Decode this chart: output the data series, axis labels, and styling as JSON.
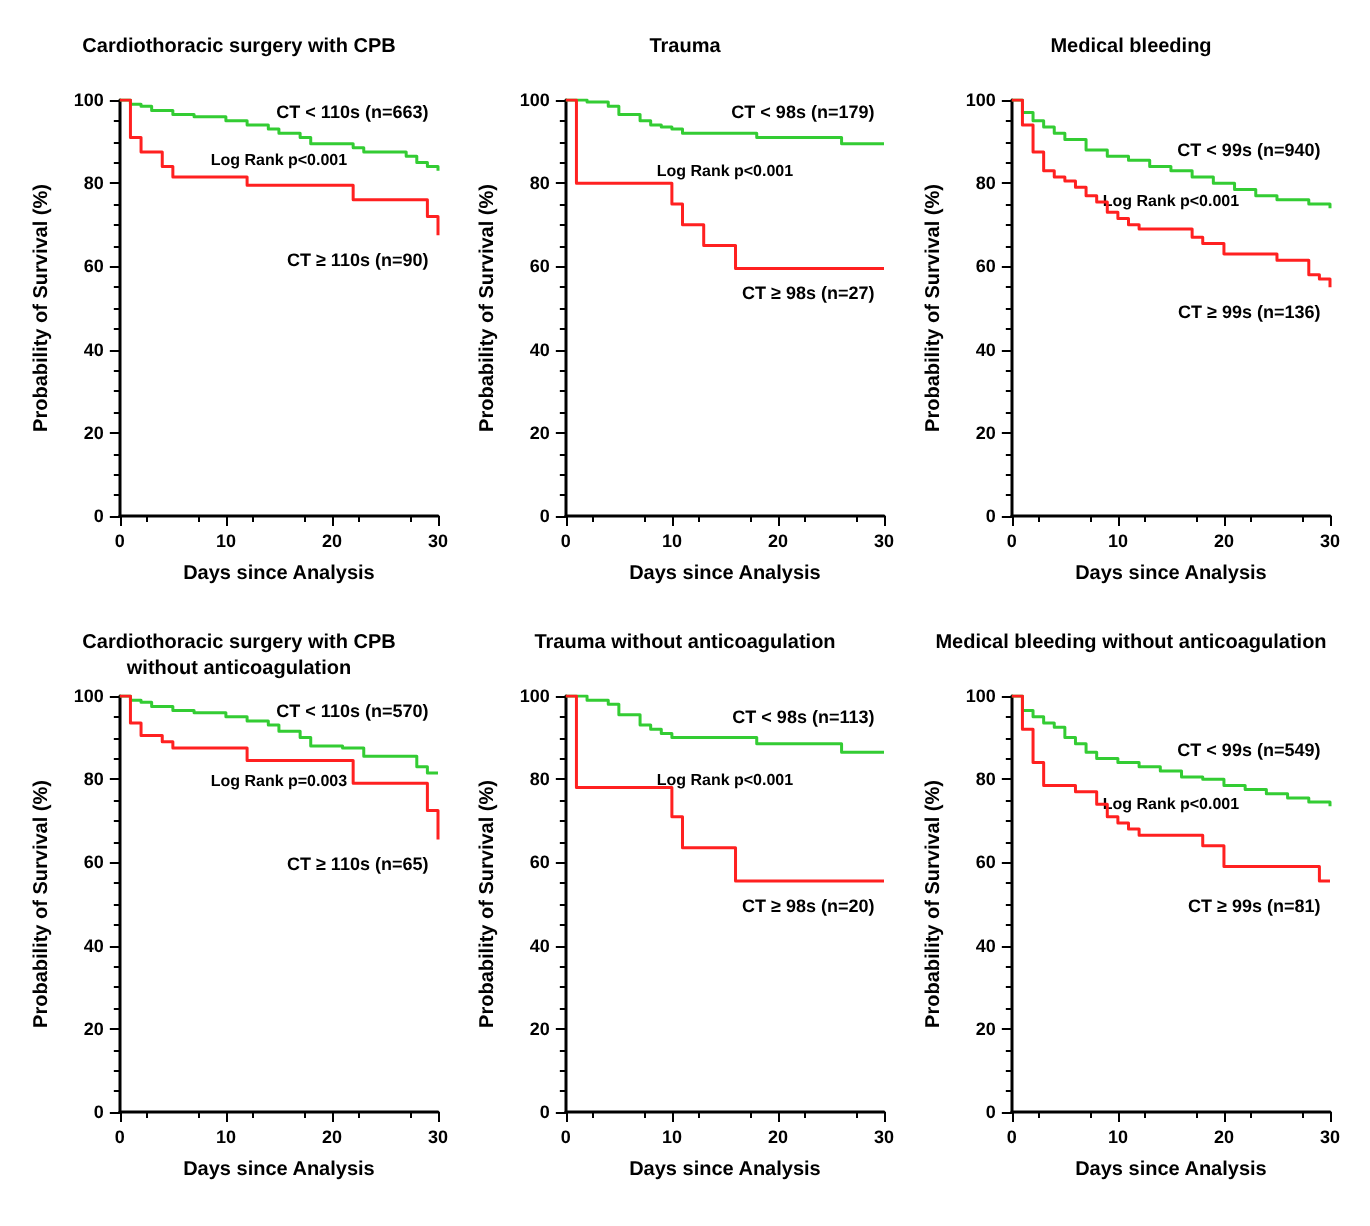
{
  "chart_data": [
    {
      "type": "step",
      "title": "Cardiothoracic surgery with CPB",
      "xlabel": "Days since Analysis",
      "ylabel": "Probability of Survival (%)",
      "xlim": [
        0,
        30
      ],
      "xticks": [
        0,
        10,
        20,
        30
      ],
      "ylim": [
        0,
        100
      ],
      "yticks": [
        0,
        20,
        40,
        60,
        80,
        100
      ],
      "grid": false,
      "legend": false,
      "marker": "none",
      "annotations": [
        "Log Rank p<0.001"
      ],
      "series": [
        {
          "name": "CT < 110s (n=663)",
          "color": "#33cc33",
          "x": [
            0,
            1,
            2,
            3,
            5,
            7,
            10,
            12,
            14,
            15,
            17,
            18,
            22,
            23,
            27,
            28,
            29,
            30
          ],
          "values": [
            100,
            99,
            98.5,
            97.5,
            96.5,
            96,
            95,
            94,
            93,
            92,
            91,
            89.5,
            88.5,
            87.5,
            86.5,
            85,
            84,
            83
          ]
        },
        {
          "name": "CT ≥ 110s (n=90)",
          "color": "#ff2020",
          "x": [
            0,
            1,
            2,
            4,
            5,
            12,
            22,
            29,
            30
          ],
          "values": [
            100,
            91,
            87.5,
            84,
            81.5,
            79.5,
            76,
            72,
            67.5
          ]
        }
      ]
    },
    {
      "type": "step",
      "title": "Trauma",
      "xlabel": "Days since Analysis",
      "ylabel": "Probability of Survival (%)",
      "xlim": [
        0,
        30
      ],
      "xticks": [
        0,
        10,
        20,
        30
      ],
      "ylim": [
        0,
        100
      ],
      "yticks": [
        0,
        20,
        40,
        60,
        80,
        100
      ],
      "grid": false,
      "legend": false,
      "marker": "none",
      "annotations": [
        "Log Rank p<0.001"
      ],
      "series": [
        {
          "name": "CT < 98s (n=179)",
          "color": "#33cc33",
          "x": [
            0,
            2,
            4,
            5,
            7,
            8,
            9,
            10,
            11,
            18,
            26,
            30
          ],
          "values": [
            100,
            99.5,
            98.5,
            96.5,
            95,
            94,
            93.5,
            93,
            92,
            91,
            89.5,
            89.5
          ]
        },
        {
          "name": "CT ≥ 98s (n=27)",
          "color": "#ff2020",
          "x": [
            0,
            1,
            10,
            11,
            13,
            16,
            30
          ],
          "values": [
            100,
            80,
            75,
            70,
            65,
            59.5,
            59.5
          ]
        }
      ]
    },
    {
      "type": "step",
      "title": "Medical bleeding",
      "xlabel": "Days since Analysis",
      "ylabel": "Probability of Survival (%)",
      "xlim": [
        0,
        30
      ],
      "xticks": [
        0,
        10,
        20,
        30
      ],
      "ylim": [
        0,
        100
      ],
      "yticks": [
        0,
        20,
        40,
        60,
        80,
        100
      ],
      "grid": false,
      "legend": false,
      "marker": "none",
      "annotations": [
        "Log Rank p<0.001"
      ],
      "series": [
        {
          "name": "CT < 99s (n=940)",
          "color": "#33cc33",
          "x": [
            0,
            1,
            2,
            3,
            4,
            5,
            7,
            9,
            11,
            13,
            15,
            17,
            19,
            21,
            23,
            25,
            28,
            30
          ],
          "values": [
            100,
            97,
            95,
            93.5,
            92,
            90.5,
            88,
            86.5,
            85.5,
            84,
            83,
            81.5,
            80,
            78.5,
            77,
            76,
            75,
            74
          ]
        },
        {
          "name": "CT ≥ 99s (n=136)",
          "color": "#ff2020",
          "x": [
            0,
            1,
            2,
            3,
            4,
            5,
            6,
            7,
            8,
            9,
            10,
            11,
            12,
            17,
            18,
            20,
            25,
            28,
            29,
            30
          ],
          "values": [
            100,
            94,
            87.5,
            83,
            81.5,
            80.5,
            79,
            77,
            75.5,
            73,
            71.5,
            70,
            69,
            67,
            65.5,
            63,
            61.5,
            58,
            57,
            55
          ]
        }
      ]
    },
    {
      "type": "step",
      "title": "Cardiothoracic surgery with CPB\nwithout anticoagulation",
      "xlabel": "Days since Analysis",
      "ylabel": "Probability of Survival (%)",
      "xlim": [
        0,
        30
      ],
      "xticks": [
        0,
        10,
        20,
        30
      ],
      "ylim": [
        0,
        100
      ],
      "yticks": [
        0,
        20,
        40,
        60,
        80,
        100
      ],
      "grid": false,
      "legend": false,
      "marker": "none",
      "annotations": [
        "Log Rank p=0.003"
      ],
      "series": [
        {
          "name": "CT < 110s (n=570)",
          "color": "#33cc33",
          "x": [
            0,
            1,
            2,
            3,
            5,
            7,
            10,
            12,
            14,
            15,
            17,
            18,
            21,
            23,
            28,
            29,
            30
          ],
          "values": [
            100,
            99,
            98.5,
            97.5,
            96.5,
            96,
            95,
            94,
            93,
            91.5,
            90,
            88,
            87.5,
            85.5,
            83,
            81.5,
            81.5
          ]
        },
        {
          "name": "CT ≥ 110s (n=65)",
          "color": "#ff2020",
          "x": [
            0,
            1,
            2,
            4,
            5,
            12,
            22,
            29,
            30
          ],
          "values": [
            100,
            93.5,
            90.5,
            89,
            87.5,
            84.5,
            79,
            72.5,
            65.5
          ]
        }
      ]
    },
    {
      "type": "step",
      "title": "Trauma without anticoagulation",
      "xlabel": "Days since Analysis",
      "ylabel": "Probability of Survival (%)",
      "xlim": [
        0,
        30
      ],
      "xticks": [
        0,
        10,
        20,
        30
      ],
      "ylim": [
        0,
        100
      ],
      "yticks": [
        0,
        20,
        40,
        60,
        80,
        100
      ],
      "grid": false,
      "legend": false,
      "marker": "none",
      "annotations": [
        "Log Rank p<0.001"
      ],
      "series": [
        {
          "name": "CT < 98s (n=113)",
          "color": "#33cc33",
          "x": [
            0,
            2,
            4,
            5,
            7,
            8,
            9,
            10,
            18,
            26,
            30
          ],
          "values": [
            100,
            99,
            98,
            95.5,
            93,
            92,
            91,
            90,
            88.5,
            86.5,
            86.5
          ]
        },
        {
          "name": "CT ≥ 98s (n=20)",
          "color": "#ff2020",
          "x": [
            0,
            1,
            10,
            11,
            16,
            30
          ],
          "values": [
            100,
            78,
            71,
            63.5,
            55.5,
            55.5
          ]
        }
      ]
    },
    {
      "type": "step",
      "title": "Medical bleeding without anticoagulation",
      "xlabel": "Days since Analysis",
      "ylabel": "Probability of Survival (%)",
      "xlim": [
        0,
        30
      ],
      "xticks": [
        0,
        10,
        20,
        30
      ],
      "ylim": [
        0,
        100
      ],
      "yticks": [
        0,
        20,
        40,
        60,
        80,
        100
      ],
      "grid": false,
      "legend": false,
      "marker": "none",
      "annotations": [
        "Log Rank p<0.001"
      ],
      "series": [
        {
          "name": "CT < 99s (n=549)",
          "color": "#33cc33",
          "x": [
            0,
            1,
            2,
            3,
            4,
            5,
            6,
            7,
            8,
            10,
            12,
            14,
            16,
            18,
            20,
            22,
            24,
            26,
            28,
            30
          ],
          "values": [
            100,
            96.5,
            95,
            93.5,
            92.5,
            90,
            88.5,
            86.5,
            85,
            84,
            83,
            82,
            80.5,
            80,
            78.5,
            77.5,
            76.5,
            75.5,
            74.5,
            73.5
          ]
        },
        {
          "name": "CT ≥ 99s (n=81)",
          "color": "#ff2020",
          "x": [
            0,
            1,
            2,
            3,
            6,
            8,
            9,
            10,
            11,
            12,
            18,
            20,
            29,
            30
          ],
          "values": [
            100,
            92,
            84,
            78.5,
            77,
            74,
            71,
            69.5,
            68,
            66.5,
            64,
            59,
            55.5,
            55.5
          ]
        }
      ]
    }
  ]
}
